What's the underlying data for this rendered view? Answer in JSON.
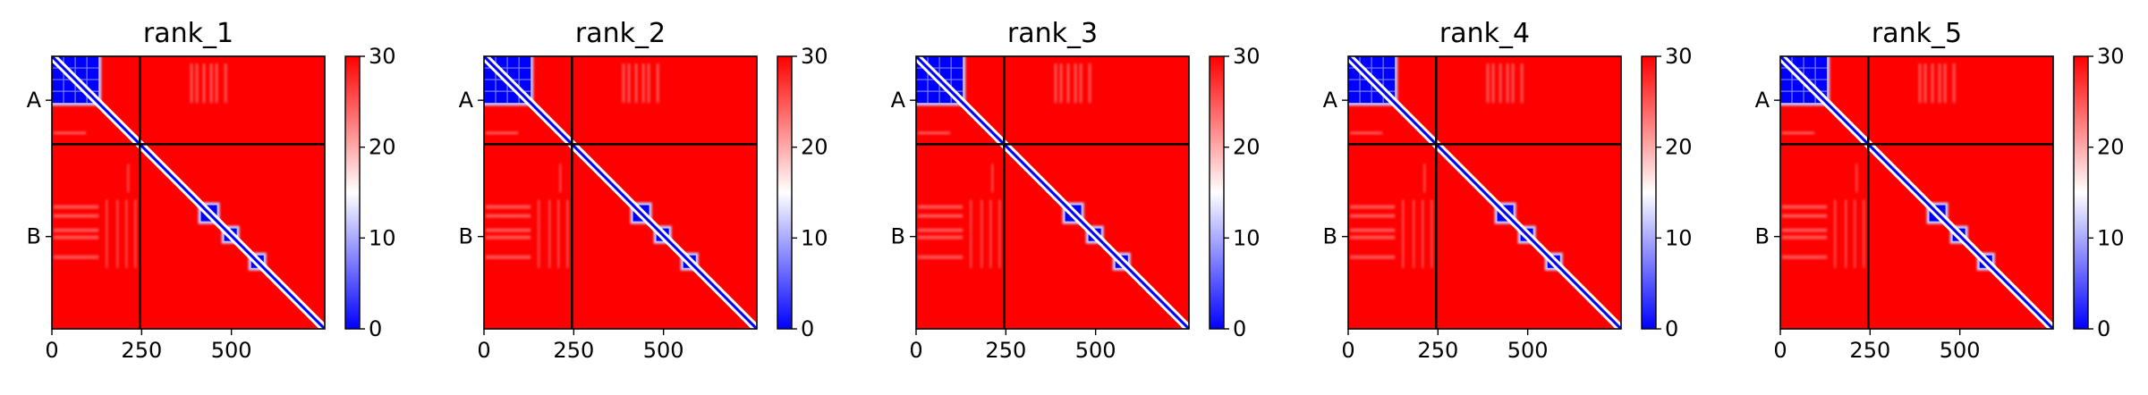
{
  "figure": {
    "panels": [
      "rank_1",
      "rank_2",
      "rank_3",
      "rank_4",
      "rank_5"
    ]
  },
  "chart_data": [
    {
      "type": "heatmap",
      "title": "rank_1",
      "xlabel": "",
      "ylabel": "",
      "xlim": [
        0,
        760
      ],
      "x_ticks": [
        0,
        250,
        500
      ],
      "y_tick_labels": [
        "A",
        "B"
      ],
      "chain_boundary": 245,
      "colorbar": {
        "min": 0,
        "max": 30,
        "ticks": [
          0,
          10,
          20,
          30
        ],
        "colormap": "bwr"
      },
      "colors": {
        "high": "#ff0000",
        "mid": "#ffffff",
        "low": "#0000ff"
      },
      "low_error_blocks": [
        {
          "x0": 0,
          "x1": 130,
          "y0": 0,
          "y1": 130
        },
        {
          "x0": 415,
          "x1": 460,
          "y0": 415,
          "y1": 460
        },
        {
          "x0": 480,
          "x1": 515,
          "y0": 480,
          "y1": 515
        },
        {
          "x0": 555,
          "x1": 590,
          "y0": 555,
          "y1": 590
        }
      ]
    },
    {
      "type": "heatmap",
      "title": "rank_2",
      "xlabel": "",
      "ylabel": "",
      "xlim": [
        0,
        760
      ],
      "x_ticks": [
        0,
        250,
        500
      ],
      "y_tick_labels": [
        "A",
        "B"
      ],
      "chain_boundary": 245,
      "colorbar": {
        "min": 0,
        "max": 30,
        "ticks": [
          0,
          10,
          20,
          30
        ],
        "colormap": "bwr"
      },
      "colors": {
        "high": "#ff0000",
        "mid": "#ffffff",
        "low": "#0000ff"
      },
      "low_error_blocks": [
        {
          "x0": 0,
          "x1": 130,
          "y0": 0,
          "y1": 130
        },
        {
          "x0": 415,
          "x1": 460,
          "y0": 415,
          "y1": 460
        },
        {
          "x0": 480,
          "x1": 515,
          "y0": 480,
          "y1": 515
        },
        {
          "x0": 555,
          "x1": 590,
          "y0": 555,
          "y1": 590
        }
      ]
    },
    {
      "type": "heatmap",
      "title": "rank_3",
      "xlabel": "",
      "ylabel": "",
      "xlim": [
        0,
        760
      ],
      "x_ticks": [
        0,
        250,
        500
      ],
      "y_tick_labels": [
        "A",
        "B"
      ],
      "chain_boundary": 245,
      "colorbar": {
        "min": 0,
        "max": 30,
        "ticks": [
          0,
          10,
          20,
          30
        ],
        "colormap": "bwr"
      },
      "colors": {
        "high": "#ff0000",
        "mid": "#ffffff",
        "low": "#0000ff"
      },
      "low_error_blocks": [
        {
          "x0": 0,
          "x1": 130,
          "y0": 0,
          "y1": 130
        },
        {
          "x0": 415,
          "x1": 460,
          "y0": 415,
          "y1": 460
        },
        {
          "x0": 480,
          "x1": 515,
          "y0": 480,
          "y1": 515
        },
        {
          "x0": 555,
          "x1": 590,
          "y0": 555,
          "y1": 590
        }
      ]
    },
    {
      "type": "heatmap",
      "title": "rank_4",
      "xlabel": "",
      "ylabel": "",
      "xlim": [
        0,
        760
      ],
      "x_ticks": [
        0,
        250,
        500
      ],
      "y_tick_labels": [
        "A",
        "B"
      ],
      "chain_boundary": 245,
      "colorbar": {
        "min": 0,
        "max": 30,
        "ticks": [
          0,
          10,
          20,
          30
        ],
        "colormap": "bwr"
      },
      "colors": {
        "high": "#ff0000",
        "mid": "#ffffff",
        "low": "#0000ff"
      },
      "low_error_blocks": [
        {
          "x0": 0,
          "x1": 130,
          "y0": 0,
          "y1": 130
        },
        {
          "x0": 415,
          "x1": 460,
          "y0": 415,
          "y1": 460
        },
        {
          "x0": 480,
          "x1": 515,
          "y0": 480,
          "y1": 515
        },
        {
          "x0": 555,
          "x1": 590,
          "y0": 555,
          "y1": 590
        }
      ]
    },
    {
      "type": "heatmap",
      "title": "rank_5",
      "xlabel": "",
      "ylabel": "",
      "xlim": [
        0,
        760
      ],
      "x_ticks": [
        0,
        250,
        500
      ],
      "y_tick_labels": [
        "A",
        "B"
      ],
      "chain_boundary": 245,
      "colorbar": {
        "min": 0,
        "max": 30,
        "ticks": [
          0,
          10,
          20,
          30
        ],
        "colormap": "bwr"
      },
      "colors": {
        "high": "#ff0000",
        "mid": "#ffffff",
        "low": "#0000ff"
      },
      "low_error_blocks": [
        {
          "x0": 0,
          "x1": 130,
          "y0": 0,
          "y1": 130
        },
        {
          "x0": 415,
          "x1": 460,
          "y0": 415,
          "y1": 460
        },
        {
          "x0": 480,
          "x1": 515,
          "y0": 480,
          "y1": 515
        },
        {
          "x0": 555,
          "x1": 590,
          "y0": 555,
          "y1": 590
        }
      ]
    }
  ]
}
